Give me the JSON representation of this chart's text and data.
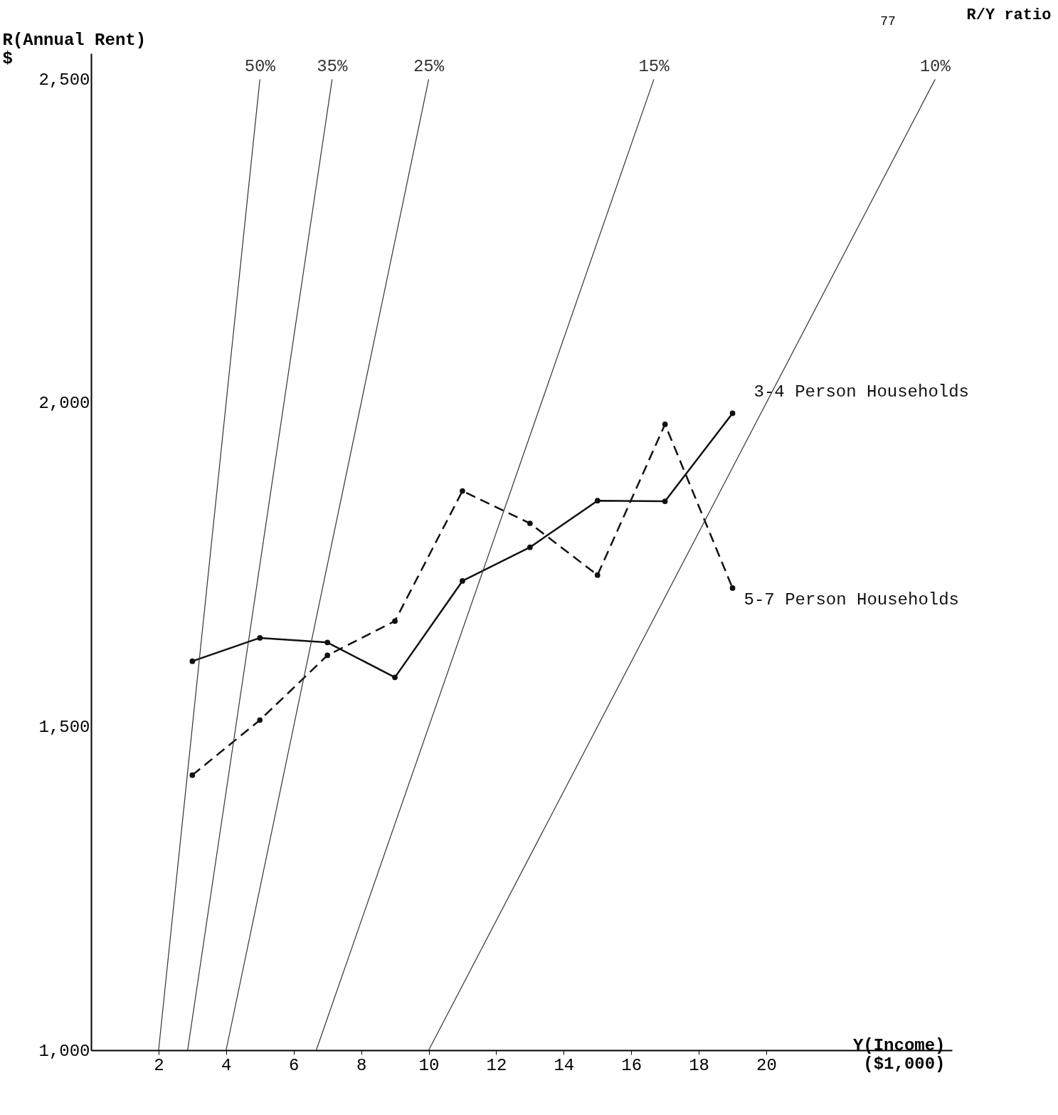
{
  "chart_data": {
    "type": "line",
    "xlabel": "Y(Income)\n($1,000)",
    "ylabel": "R(Annual Rent)\n$",
    "annotations": [
      "77",
      "R/Y ratio"
    ],
    "xlim": [
      0,
      25.5
    ],
    "ylim": [
      1000,
      2540
    ],
    "xticks": [
      2,
      4,
      6,
      8,
      10,
      12,
      14,
      16,
      18,
      20
    ],
    "yticks": [
      {
        "value": 1000,
        "label": "1,000"
      },
      {
        "value": 1500,
        "label": "1,500"
      },
      {
        "value": 2000,
        "label": "2,000"
      },
      {
        "value": 2500,
        "label": "2,500"
      }
    ],
    "grid": false,
    "series": [
      {
        "name": "3-4 Person Households",
        "color": "#111111",
        "marker": "circle",
        "line_style": "solid",
        "x": [
          3,
          5,
          7,
          9,
          11,
          13,
          15,
          17,
          19
        ],
        "values": [
          1601,
          1637,
          1630,
          1576,
          1725,
          1777,
          1849,
          1848,
          1984
        ]
      },
      {
        "name": "5-7 Person Households",
        "color": "#111111",
        "marker": "circle",
        "line_style": "dashed",
        "x": [
          3,
          5,
          7,
          9,
          11,
          13,
          15,
          17,
          19
        ],
        "values": [
          1425,
          1510,
          1610,
          1663,
          1864,
          1814,
          1734,
          1967,
          1714
        ]
      },
      {
        "name": "50%",
        "color": "#333333",
        "marker": "none",
        "line_style": "solid",
        "x": [
          2,
          5
        ],
        "values": [
          1000,
          2500
        ]
      },
      {
        "name": "35%",
        "color": "#333333",
        "marker": "none",
        "line_style": "solid",
        "x": [
          2.86,
          7.14
        ],
        "values": [
          1000,
          2500
        ]
      },
      {
        "name": "25%",
        "color": "#333333",
        "marker": "none",
        "line_style": "solid",
        "x": [
          4,
          10
        ],
        "values": [
          1000,
          2500
        ]
      },
      {
        "name": "15%",
        "color": "#333333",
        "marker": "none",
        "line_style": "solid",
        "x": [
          6.67,
          16.67
        ],
        "values": [
          1000,
          2500
        ]
      },
      {
        "name": "10%",
        "color": "#333333",
        "marker": "none",
        "line_style": "solid",
        "x": [
          10,
          25
        ],
        "values": [
          1000,
          2500
        ]
      }
    ]
  }
}
